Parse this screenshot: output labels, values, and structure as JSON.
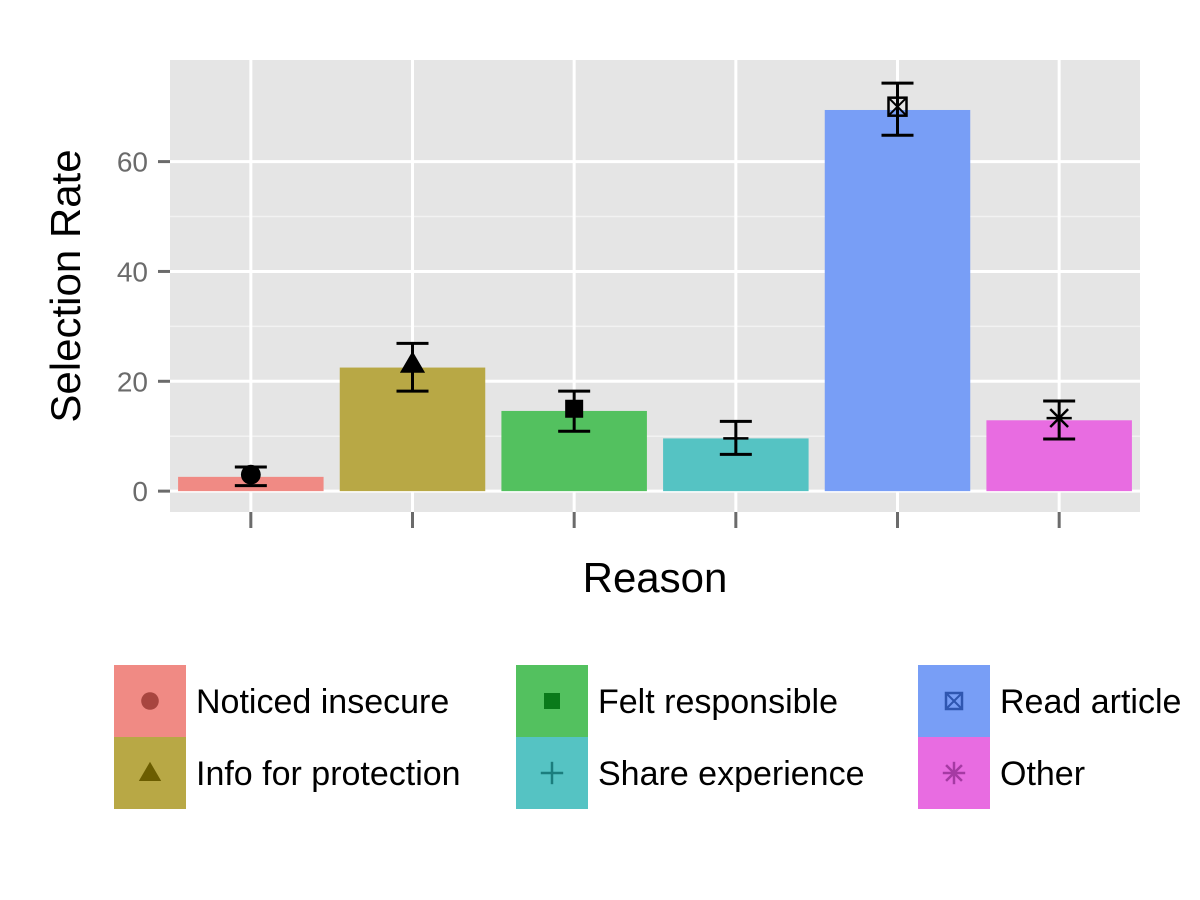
{
  "chart_data": {
    "type": "bar",
    "xlabel": "Reason",
    "ylabel": "Selection Rate",
    "ylim": [
      -3.8,
      78.5
    ],
    "yticks": [
      0,
      20,
      40,
      60
    ],
    "grid": true,
    "legend_position": "bottom",
    "categories": [
      "Noticed insecure",
      "Info for protection",
      "Felt responsible",
      "Share experience",
      "Read article",
      "Other"
    ],
    "values": [
      2.6,
      22.5,
      14.6,
      9.6,
      69.4,
      12.9
    ],
    "error_low": [
      1.0,
      18.2,
      10.9,
      6.7,
      64.8,
      9.5
    ],
    "error_high": [
      4.4,
      26.9,
      18.2,
      12.7,
      74.3,
      16.4
    ],
    "point_values": [
      3.0,
      23.2,
      15.0,
      9.6,
      70.0,
      13.3
    ],
    "markers": [
      "circle",
      "triangle",
      "square",
      "plus",
      "square-x",
      "asterisk"
    ],
    "colors": [
      "#F08A84",
      "#B8A845",
      "#53C15F",
      "#55C3C3",
      "#789EF6",
      "#E86CE1"
    ],
    "marker_colors": [
      "#a8453f",
      "#6b5d00",
      "#0a7a1a",
      "#1b7d7d",
      "#2f56b0",
      "#a53aa3"
    ],
    "legend_order": [
      0,
      1,
      2,
      3,
      4,
      5
    ]
  }
}
